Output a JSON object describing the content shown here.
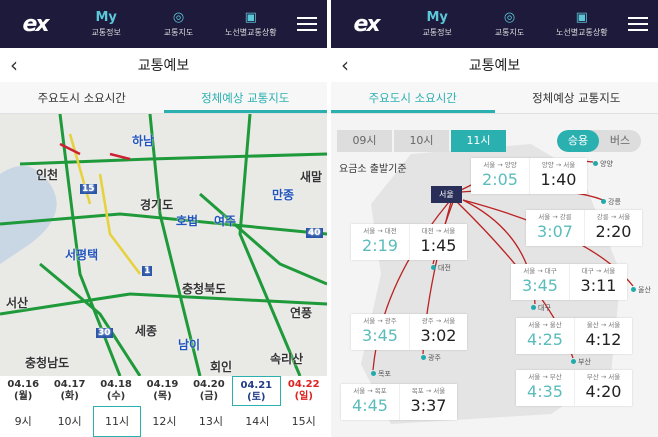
{
  "topbar": {
    "logo": "ex",
    "nav": [
      {
        "icon": "My",
        "label": "교통정보"
      },
      {
        "icon": "globe-icon",
        "label": "교통지도"
      },
      {
        "icon": "route-sign-icon",
        "label": "노선별교통상황"
      }
    ]
  },
  "header": {
    "title": "교통예보"
  },
  "tabs": [
    "주요도시 소요시간",
    "정체예상 교통지도"
  ],
  "left": {
    "map_labels": [
      "하남",
      "인천",
      "새말",
      "경기도",
      "호법",
      "여주",
      "만종",
      "서평택",
      "충청북도",
      "서산",
      "연풍",
      "세종",
      "남이",
      "충청남도",
      "회인",
      "속리산",
      "15",
      "40",
      "1",
      "30"
    ],
    "dates": [
      {
        "d": "04.16",
        "w": "(월)"
      },
      {
        "d": "04.17",
        "w": "(화)"
      },
      {
        "d": "04.18",
        "w": "(수)"
      },
      {
        "d": "04.19",
        "w": "(목)"
      },
      {
        "d": "04.20",
        "w": "(금)"
      },
      {
        "d": "04.21",
        "w": "(토)"
      },
      {
        "d": "04.22",
        "w": "(일)"
      }
    ],
    "selected_date": "04.21",
    "times": [
      "9시",
      "10시",
      "11시",
      "12시",
      "13시",
      "14시",
      "15시"
    ],
    "selected_time": "11시"
  },
  "right": {
    "hours": [
      "09시",
      "10시",
      "11시"
    ],
    "selected_hour": "11시",
    "modes": [
      "승용",
      "버스"
    ],
    "selected_mode": "승용",
    "basis": "요금소 출발기준",
    "origin": "서울",
    "routes": [
      {
        "city": "양양",
        "to_label": "서울 → 양양",
        "to": "2:05",
        "from_label": "양양 → 서울",
        "from": "1:40"
      },
      {
        "city": "강릉",
        "to_label": "서울 → 강릉",
        "to": "3:07",
        "from_label": "강릉 → 서울",
        "from": "2:20"
      },
      {
        "city": "대전",
        "to_label": "서울 → 대전",
        "to": "2:19",
        "from_label": "대전 → 서울",
        "from": "1:45"
      },
      {
        "city": "대구",
        "to_label": "서울 → 대구",
        "to": "3:45",
        "from_label": "대구 → 서울",
        "from": "3:11"
      },
      {
        "city": "광주",
        "to_label": "서울 → 광주",
        "to": "3:45",
        "from_label": "광주 → 서울",
        "from": "3:02"
      },
      {
        "city": "울산",
        "to_label": "서울 → 울산",
        "to": "4:25",
        "from_label": "울산 → 서울",
        "from": "4:12"
      },
      {
        "city": "부산",
        "to_label": "서울 → 부산",
        "to": "4:35",
        "from_label": "부산 → 서울",
        "from": "4:20"
      },
      {
        "city": "목포",
        "to_label": "서울 → 목포",
        "to": "4:45",
        "from_label": "목포 → 서울",
        "from": "3:37"
      }
    ]
  }
}
